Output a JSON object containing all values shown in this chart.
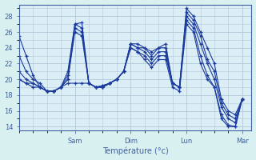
{
  "title": "Température (°c)",
  "bg_color": "#d8f0f0",
  "plot_bg_color": "#dceef5",
  "line_color": "#1a3a9e",
  "grid_color": "#b0c8d8",
  "tick_color": "#4060a0",
  "yticks": [
    14,
    16,
    18,
    20,
    22,
    24,
    26,
    28
  ],
  "ylim": [
    13.5,
    29.5
  ],
  "xlim": [
    0,
    100
  ],
  "xtick_positions": [
    24,
    48,
    72,
    96
  ],
  "xtick_labels": [
    "Sam",
    "Dim",
    "Lun",
    "Mar"
  ],
  "series": [
    {
      "x": [
        0,
        3,
        6,
        9,
        12,
        15,
        18,
        21,
        24,
        27,
        30,
        33,
        36,
        39,
        42,
        45,
        48,
        51,
        54,
        57,
        60,
        63,
        66,
        69,
        72,
        75,
        78,
        81,
        84,
        87,
        90,
        93,
        96
      ],
      "y": [
        25.5,
        23.0,
        20.5,
        19.0,
        18.5,
        18.5,
        19.0,
        21.0,
        27.0,
        27.2,
        19.5,
        19.0,
        19.2,
        19.5,
        20.0,
        21.0,
        24.5,
        24.5,
        24.0,
        23.5,
        24.0,
        24.5,
        19.5,
        19.0,
        29.0,
        28.0,
        26.0,
        24.0,
        22.0,
        17.5,
        16.0,
        15.5,
        17.5
      ]
    },
    {
      "x": [
        0,
        3,
        6,
        9,
        12,
        15,
        18,
        21,
        24,
        27,
        30,
        33,
        36,
        39,
        42,
        45,
        48,
        51,
        54,
        57,
        60,
        63,
        66,
        69,
        72,
        75,
        78,
        81,
        84,
        87,
        90,
        93,
        96
      ],
      "y": [
        23.0,
        21.0,
        20.0,
        19.5,
        18.5,
        18.5,
        19.0,
        20.5,
        27.0,
        26.5,
        19.5,
        19.0,
        19.2,
        19.5,
        20.0,
        21.0,
        24.5,
        24.0,
        24.0,
        23.0,
        24.0,
        24.0,
        19.5,
        19.0,
        28.5,
        27.5,
        25.5,
        22.5,
        21.0,
        17.0,
        15.5,
        15.0,
        17.5
      ]
    },
    {
      "x": [
        0,
        3,
        6,
        9,
        12,
        15,
        18,
        21,
        24,
        27,
        30,
        33,
        36,
        39,
        42,
        45,
        48,
        51,
        54,
        57,
        60,
        63,
        66,
        69,
        72,
        75,
        78,
        81,
        84,
        87,
        90,
        93,
        96
      ],
      "y": [
        21.0,
        20.0,
        19.5,
        19.0,
        18.5,
        18.5,
        19.0,
        20.0,
        26.5,
        26.0,
        19.5,
        19.0,
        19.0,
        19.5,
        20.0,
        21.0,
        24.5,
        24.0,
        23.5,
        22.5,
        23.5,
        23.5,
        19.5,
        19.0,
        28.0,
        27.0,
        24.5,
        22.0,
        20.0,
        16.5,
        15.0,
        14.5,
        17.5
      ]
    },
    {
      "x": [
        0,
        3,
        6,
        9,
        12,
        15,
        18,
        21,
        24,
        27,
        30,
        33,
        36,
        39,
        42,
        45,
        48,
        51,
        54,
        57,
        60,
        63,
        66,
        69,
        72,
        75,
        78,
        81,
        84,
        87,
        90,
        93,
        96
      ],
      "y": [
        20.0,
        19.5,
        19.5,
        19.0,
        18.5,
        18.5,
        19.0,
        20.0,
        26.0,
        25.5,
        19.5,
        19.0,
        19.0,
        19.5,
        20.0,
        21.0,
        24.0,
        23.5,
        23.0,
        22.0,
        23.0,
        23.0,
        19.5,
        19.0,
        27.5,
        26.5,
        23.0,
        20.5,
        19.0,
        15.5,
        14.2,
        14.0,
        17.5
      ]
    },
    {
      "x": [
        0,
        3,
        6,
        9,
        12,
        15,
        18,
        21,
        24,
        27,
        30,
        33,
        36,
        39,
        42,
        45,
        48,
        51,
        54,
        57,
        60,
        63,
        66,
        69,
        72,
        75,
        78,
        81,
        84,
        87,
        90,
        93,
        96
      ],
      "y": [
        20.0,
        19.5,
        19.0,
        19.0,
        18.5,
        18.5,
        19.0,
        19.5,
        19.5,
        19.5,
        19.5,
        19.0,
        19.0,
        19.5,
        20.0,
        21.0,
        24.0,
        23.5,
        22.5,
        21.5,
        22.5,
        22.5,
        19.0,
        18.5,
        27.0,
        26.0,
        22.0,
        20.0,
        19.0,
        15.0,
        14.0,
        14.0,
        17.5
      ]
    }
  ]
}
